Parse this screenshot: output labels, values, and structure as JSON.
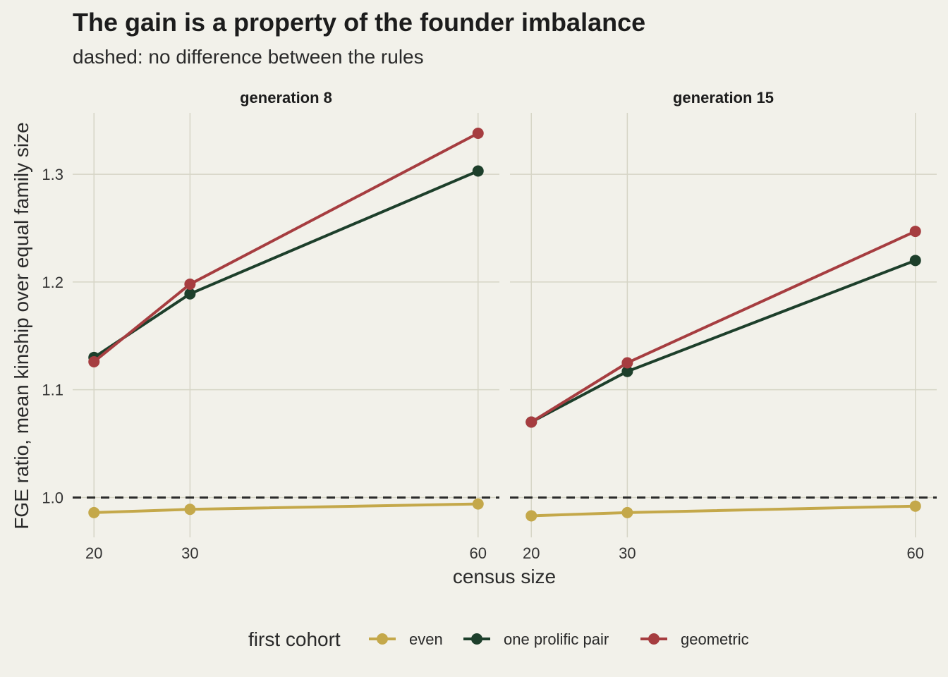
{
  "chart_data": {
    "type": "line",
    "title": "The gain is a property of the founder imbalance",
    "subtitle": "dashed: no difference between the rules",
    "xlabel": "census size",
    "ylabel": "FGE ratio, mean kinship over equal family size",
    "x": [
      20,
      30,
      60
    ],
    "x_ticks": [
      "20",
      "30",
      "60"
    ],
    "y_ticks": [
      "1.0",
      "1.1",
      "1.2",
      "1.3"
    ],
    "ylim": [
      0.963,
      1.357
    ],
    "reference_line": 1.0,
    "grid": true,
    "legend": {
      "title": "first cohort",
      "position": "bottom",
      "entries": [
        "even",
        "one prolific pair",
        "geometric"
      ]
    },
    "colors": {
      "even": "#c4a84a",
      "one prolific pair": "#1d3f2b",
      "geometric": "#a63d40"
    },
    "panels": [
      {
        "label": "generation 8",
        "series": [
          {
            "name": "even",
            "values": [
              0.986,
              0.989,
              0.994
            ]
          },
          {
            "name": "one prolific pair",
            "values": [
              1.13,
              1.189,
              1.303
            ]
          },
          {
            "name": "geometric",
            "values": [
              1.126,
              1.198,
              1.338
            ]
          }
        ]
      },
      {
        "label": "generation 15",
        "series": [
          {
            "name": "even",
            "values": [
              0.983,
              0.986,
              0.992
            ]
          },
          {
            "name": "one prolific pair",
            "values": [
              1.07,
              1.117,
              1.22
            ]
          },
          {
            "name": "geometric",
            "values": [
              1.07,
              1.125,
              1.247
            ]
          }
        ]
      }
    ]
  }
}
